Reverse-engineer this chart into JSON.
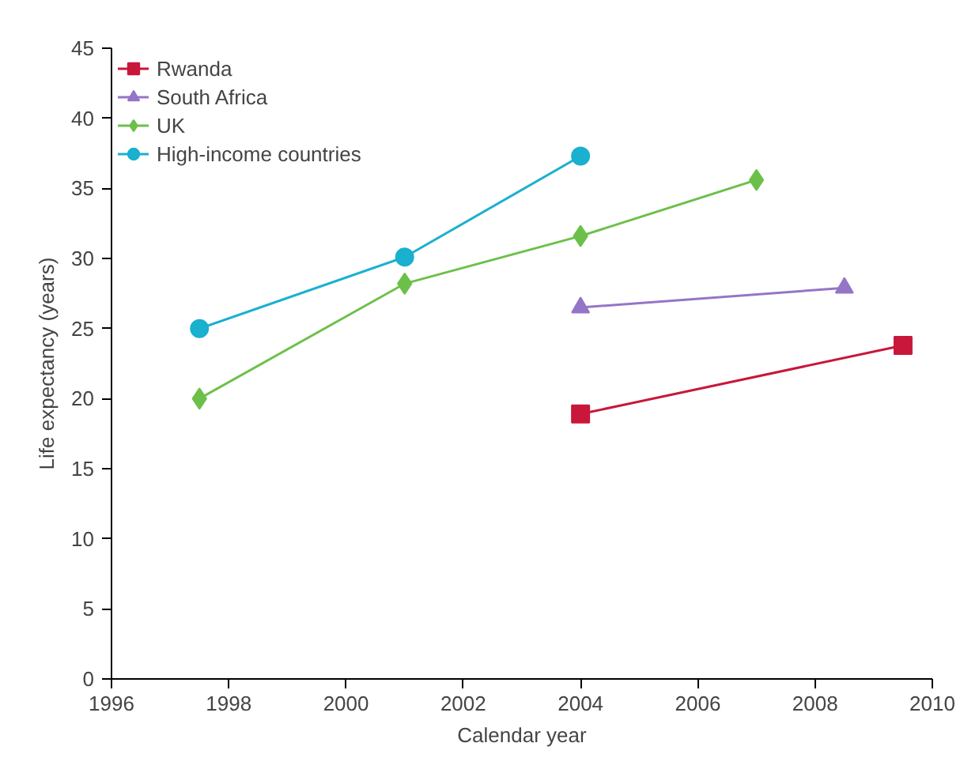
{
  "chart_data": {
    "type": "line",
    "xlabel": "Calendar year",
    "ylabel": "Life expectancy (years)",
    "xlim": [
      1996,
      2010
    ],
    "xticks": [
      1996,
      1998,
      2000,
      2002,
      2004,
      2006,
      2008,
      2010
    ],
    "ylim": [
      0,
      45
    ],
    "yticks": [
      0,
      5,
      10,
      15,
      20,
      25,
      30,
      35,
      40,
      45
    ],
    "grid": false,
    "legend": "top left",
    "series": [
      {
        "name": "Rwanda",
        "color": "#c8173a",
        "marker": "square",
        "x": [
          2004,
          2009.5
        ],
        "values": [
          18.9,
          23.8
        ]
      },
      {
        "name": "South Africa",
        "color": "#9575c8",
        "marker": "triangle",
        "x": [
          2004,
          2008.5
        ],
        "values": [
          26.5,
          27.9
        ]
      },
      {
        "name": "UK",
        "color": "#6cc04a",
        "marker": "diamond",
        "x": [
          1997.5,
          2001,
          2004,
          2007
        ],
        "values": [
          20,
          28.2,
          31.6,
          35.6
        ]
      },
      {
        "name": "High-income countries",
        "color": "#1ab0cf",
        "marker": "circle",
        "x": [
          1997.5,
          2001,
          2004
        ],
        "values": [
          25,
          30.1,
          37.3
        ]
      }
    ]
  }
}
